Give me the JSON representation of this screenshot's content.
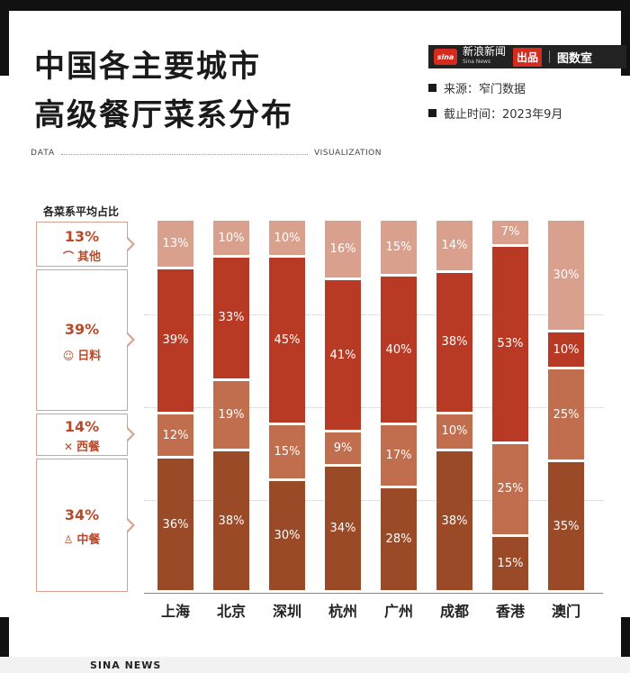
{
  "header": {
    "title_line1": "中国各主要城市",
    "title_line2": "高级餐厅菜系分布",
    "brand_name": "新浪新闻",
    "brand_sub": "Sina News",
    "brand_logo": "sina",
    "brand_badge": "出品",
    "brand_lab": "图数室",
    "source": "来源：窄门数据",
    "date": "截止时间：2023年9月"
  },
  "divider": {
    "left": "DATA",
    "right": "VISUALIZATION"
  },
  "legend": {
    "heading": "各菜系平均占比",
    "items": [
      {
        "pct": "13%",
        "label": "其他",
        "icon": "cloche-icon",
        "glyph": "⌒"
      },
      {
        "pct": "39%",
        "label": "日料",
        "icon": "sushi-chef-icon",
        "glyph": "☺"
      },
      {
        "pct": "14%",
        "label": "西餐",
        "icon": "fork-knife-icon",
        "glyph": "✕"
      },
      {
        "pct": "34%",
        "label": "中餐",
        "icon": "chinese-chef-icon",
        "glyph": "♙"
      }
    ]
  },
  "colors": {
    "中餐": "#9a4a27",
    "西餐": "#c06e4e",
    "日料": "#b83a24",
    "其他": "#d9a08e"
  },
  "chart_data": {
    "type": "bar",
    "stacked": true,
    "categories": [
      "上海",
      "北京",
      "深圳",
      "杭州",
      "广州",
      "成都",
      "香港",
      "澳门"
    ],
    "series": [
      {
        "name": "中餐",
        "values": [
          36,
          38,
          30,
          34,
          28,
          38,
          15,
          35
        ]
      },
      {
        "name": "西餐",
        "values": [
          12,
          19,
          15,
          9,
          17,
          10,
          25,
          25
        ]
      },
      {
        "name": "日料",
        "values": [
          39,
          33,
          45,
          41,
          40,
          38,
          53,
          10
        ]
      },
      {
        "name": "其他",
        "values": [
          13,
          10,
          10,
          16,
          15,
          14,
          7,
          30
        ]
      }
    ],
    "ylim": [
      0,
      100
    ],
    "unit": "%"
  },
  "footer": {
    "text": "SINA NEWS"
  }
}
